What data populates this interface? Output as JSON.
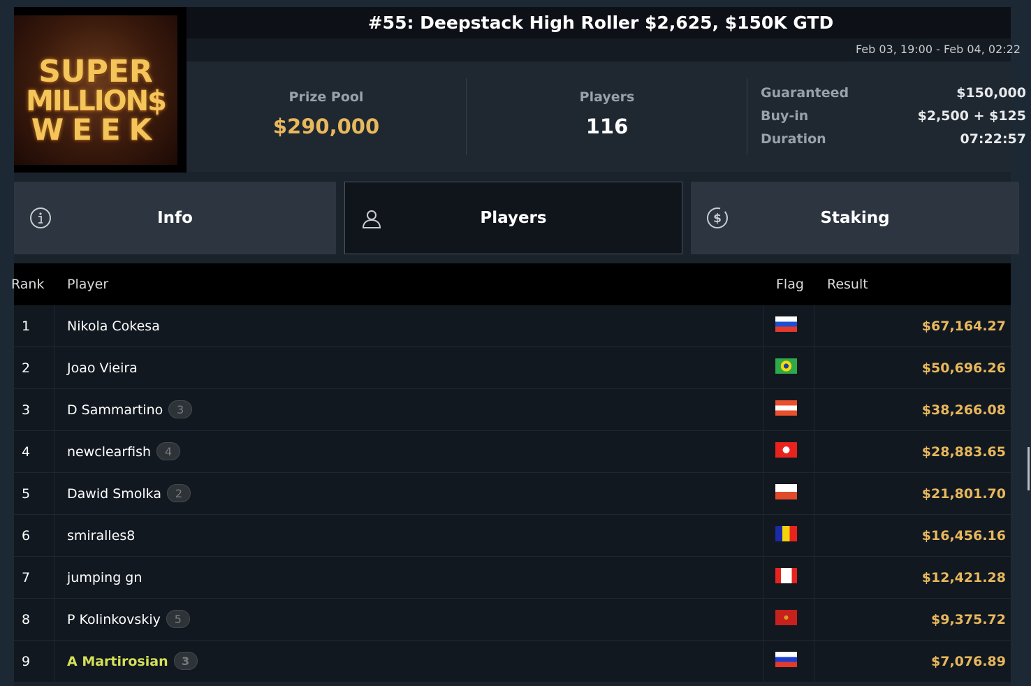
{
  "logo": {
    "text": "SUPER MILLION$ WEEK"
  },
  "header": {
    "title": "#55: Deepstack High Roller $2,625, $150K GTD",
    "dates": "Feb 03, 19:00 - Feb 04, 02:22"
  },
  "stats": {
    "prize_pool": {
      "label": "Prize Pool",
      "value": "$290,000",
      "color": "#e8b85c"
    },
    "players": {
      "label": "Players",
      "value": "116"
    },
    "details": [
      {
        "label": "Guaranteed",
        "value": "$150,000"
      },
      {
        "label": "Buy-in",
        "value": "$2,500 + $125"
      },
      {
        "label": "Duration",
        "value": "07:22:57"
      }
    ]
  },
  "tabs": [
    {
      "label": "Info",
      "icon": "info-icon",
      "active": false
    },
    {
      "label": "Players",
      "icon": "user-icon",
      "active": true
    },
    {
      "label": "Staking",
      "icon": "dollar-coin-icon",
      "active": false
    }
  ],
  "table": {
    "headers": {
      "rank": "Rank",
      "player": "Player",
      "flag": "Flag",
      "result": "Result"
    },
    "rows": [
      {
        "rank": "1",
        "player": "Nikola Cokesa",
        "badge": "",
        "flag": "Slovenia",
        "result": "$67,164.27"
      },
      {
        "rank": "2",
        "player": "Joao Vieira",
        "badge": "",
        "flag": "Brazil",
        "result": "$50,696.26"
      },
      {
        "rank": "3",
        "player": "D Sammartino",
        "badge": "3",
        "flag": "Austria",
        "result": "$38,266.08"
      },
      {
        "rank": "4",
        "player": "newclearfish",
        "badge": "4",
        "flag": "Hong Kong",
        "result": "$28,883.65"
      },
      {
        "rank": "5",
        "player": "Dawid Smolka",
        "badge": "2",
        "flag": "Poland",
        "result": "$21,801.70"
      },
      {
        "rank": "6",
        "player": "smiralles8",
        "badge": "",
        "flag": "Andorra",
        "result": "$16,456.16"
      },
      {
        "rank": "7",
        "player": "jumping gn",
        "badge": "",
        "flag": "Canada",
        "result": "$12,421.28"
      },
      {
        "rank": "8",
        "player": "P Kolinkovskiy",
        "badge": "5",
        "flag": "Montenegro",
        "result": "$9,375.72"
      },
      {
        "rank": "9",
        "player": "A Martirosian",
        "badge": "3",
        "flag": "Russia",
        "result": "$7,076.89",
        "highlight": "#d4e157"
      }
    ]
  }
}
